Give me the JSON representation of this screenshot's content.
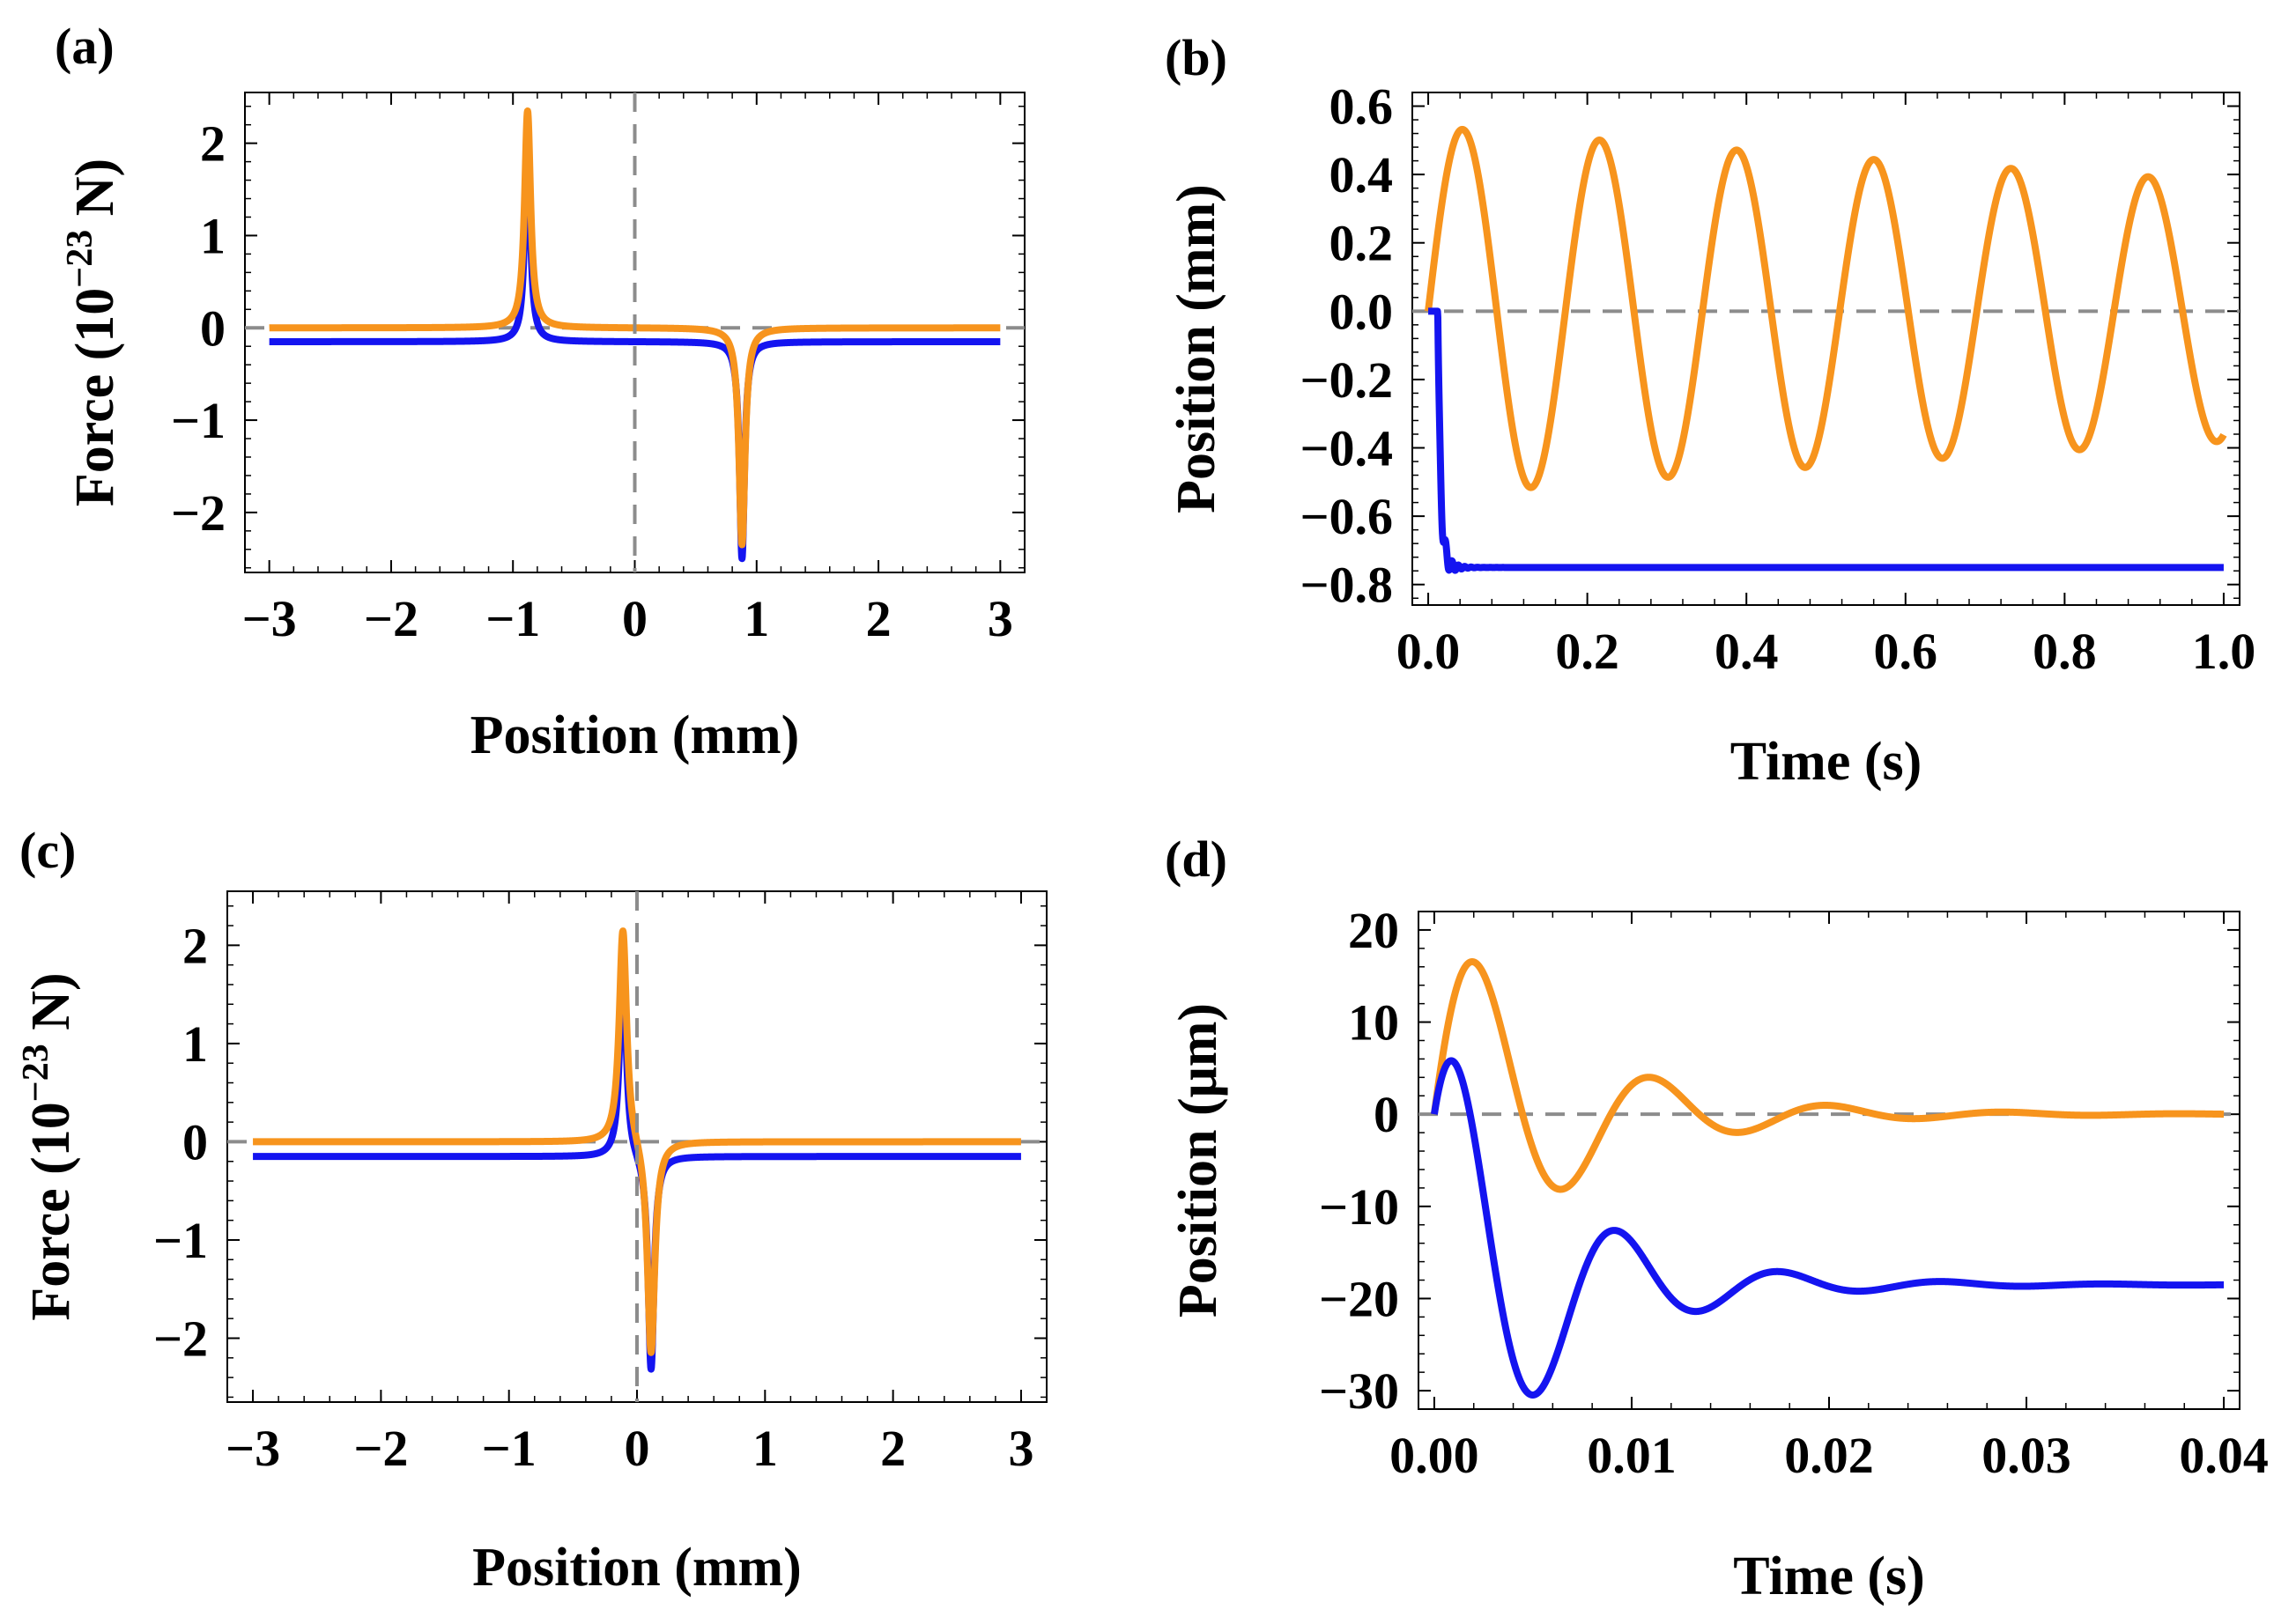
{
  "colors": {
    "orange": "#F7941D",
    "blue": "#1414F0",
    "ref_line": "#8C8C8C",
    "frame": "#000000"
  },
  "chart_data": [
    {
      "panel": "(a)",
      "type": "line",
      "xlabel": "Position (mm)",
      "ylabel": {
        "base": "Force (10",
        "exp": "−23",
        "unit": " N)"
      },
      "xlim": [
        -3.2,
        3.2
      ],
      "ylim": [
        -2.65,
        2.55
      ],
      "xticks": [
        -3,
        -2,
        -1,
        0,
        1,
        2,
        3
      ],
      "xtick_labels": [
        "−3",
        "−2",
        "−1",
        "0",
        "1",
        "2",
        "3"
      ],
      "yticks": [
        -2,
        -1,
        0,
        1,
        2
      ],
      "ytick_labels": [
        "−2",
        "−1",
        "0",
        "1",
        "2"
      ],
      "ref_lines": {
        "h": 0,
        "v": 0
      },
      "series": [
        {
          "name": "blue",
          "color": "#1414F0",
          "model": "force_lorentz",
          "x_range": [
            -3,
            3
          ],
          "params": {
            "x0": 0.88,
            "amp": 2.35,
            "gamma": 0.025,
            "offset": -0.15
          }
        },
        {
          "name": "orange",
          "color": "#F7941D",
          "model": "force_lorentz",
          "x_range": [
            -3,
            3
          ],
          "params": {
            "x0": 0.88,
            "amp": 2.35,
            "gamma": 0.03,
            "offset": 0.0
          }
        }
      ]
    },
    {
      "panel": "(b)",
      "type": "line",
      "xlabel": "Time (s)",
      "ylabel": "Position (mm)",
      "xlim": [
        -0.02,
        1.02
      ],
      "ylim": [
        -0.86,
        0.64
      ],
      "xticks": [
        0.0,
        0.2,
        0.4,
        0.6,
        0.8,
        1.0
      ],
      "xtick_labels": [
        "0.0",
        "0.2",
        "0.4",
        "0.6",
        "0.8",
        "1.0"
      ],
      "yticks": [
        -0.8,
        -0.6,
        -0.4,
        -0.2,
        0.0,
        0.2,
        0.4,
        0.6
      ],
      "ytick_labels": [
        "−0.8",
        "−0.6",
        "−0.4",
        "−0.2",
        "0.0",
        "0.2",
        "0.4",
        "0.6"
      ],
      "ref_lines": {
        "h": 0
      },
      "series": [
        {
          "name": "orange",
          "color": "#F7941D",
          "model": "damped_sine",
          "x_range": [
            0,
            1.0
          ],
          "params": {
            "amp": 0.54,
            "freq": 5.8,
            "decay": 0.35,
            "final": 0
          }
        },
        {
          "name": "blue",
          "color": "#1414F0",
          "model": "settle",
          "x_range": [
            0,
            1.0
          ],
          "params": {
            "final": -0.75,
            "t0": 0.012,
            "drop_tau": 0.0035,
            "osc_amp": 0.09,
            "osc_freq": 125,
            "osc_decay": 100
          }
        }
      ]
    },
    {
      "panel": "(c)",
      "type": "line",
      "xlabel": "Position (mm)",
      "ylabel": {
        "base": "Force (10",
        "exp": "−23",
        "unit": " N)"
      },
      "xlim": [
        -3.2,
        3.2
      ],
      "ylim": [
        -2.65,
        2.55
      ],
      "xticks": [
        -3,
        -2,
        -1,
        0,
        1,
        2,
        3
      ],
      "xtick_labels": [
        "−3",
        "−2",
        "−1",
        "0",
        "1",
        "2",
        "3"
      ],
      "yticks": [
        -2,
        -1,
        0,
        1,
        2
      ],
      "ytick_labels": [
        "−2",
        "−1",
        "0",
        "1",
        "2"
      ],
      "ref_lines": {
        "h": 0,
        "v": 0
      },
      "series": [
        {
          "name": "blue",
          "color": "#1414F0",
          "model": "force_lorentz",
          "x_range": [
            -3,
            3
          ],
          "params": {
            "x0": 0.11,
            "amp": 2.2,
            "gamma": 0.028,
            "offset": -0.15
          }
        },
        {
          "name": "orange",
          "color": "#F7941D",
          "model": "force_lorentz",
          "x_range": [
            -3,
            3
          ],
          "params": {
            "x0": 0.11,
            "amp": 2.2,
            "gamma": 0.035,
            "offset": 0.0
          }
        }
      ]
    },
    {
      "panel": "(d)",
      "type": "line",
      "xlabel": "Time (s)",
      "ylabel": "Position (μm)",
      "xlim": [
        -0.0008,
        0.0408
      ],
      "ylim": [
        -32,
        22
      ],
      "xticks": [
        0.0,
        0.01,
        0.02,
        0.03,
        0.04
      ],
      "xtick_labels": [
        "0.00",
        "0.01",
        "0.02",
        "0.03",
        "0.04"
      ],
      "yticks": [
        -30,
        -20,
        -10,
        0,
        10,
        20
      ],
      "ytick_labels": [
        "−30",
        "−20",
        "−10",
        "0",
        "10",
        "20"
      ],
      "ref_lines": {
        "h": 0
      },
      "series": [
        {
          "name": "orange",
          "color": "#F7941D",
          "model": "step_response",
          "x_range": [
            0,
            0.04
          ],
          "params": {
            "final": 0,
            "amp": 23,
            "wn": 720,
            "zeta": 0.22
          }
        },
        {
          "name": "blue",
          "color": "#1414F0",
          "model": "step_response",
          "x_range": [
            0,
            0.04
          ],
          "params": {
            "final": -18.5,
            "amp": 18,
            "wn": 780,
            "zeta": 0.22
          }
        }
      ]
    }
  ]
}
